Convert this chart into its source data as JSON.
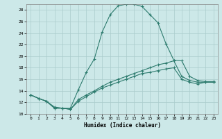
{
  "xlabel": "Humidex (Indice chaleur)",
  "bg_color": "#cce8e8",
  "line_color": "#2d7b6e",
  "grid_color": "#aacccc",
  "xlim": [
    -0.5,
    23.5
  ],
  "ylim": [
    10,
    29
  ],
  "xticks": [
    0,
    1,
    2,
    3,
    4,
    5,
    6,
    7,
    8,
    9,
    10,
    11,
    12,
    13,
    14,
    15,
    16,
    17,
    18,
    19,
    20,
    21,
    22,
    23
  ],
  "yticks": [
    10,
    12,
    14,
    16,
    18,
    20,
    22,
    24,
    26,
    28
  ],
  "line1_x": [
    0,
    1,
    2,
    3,
    4,
    5,
    6,
    7,
    8,
    9,
    10,
    11,
    12,
    13,
    14,
    15,
    16,
    17,
    18,
    19,
    20,
    21,
    22,
    23
  ],
  "line1_y": [
    13.3,
    12.7,
    12.2,
    11.0,
    11.0,
    11.0,
    14.2,
    17.2,
    19.5,
    24.2,
    27.2,
    28.7,
    29.0,
    29.0,
    28.6,
    27.2,
    25.8,
    22.2,
    19.3,
    19.2,
    16.5,
    15.8,
    15.6,
    15.6
  ],
  "line2_x": [
    0,
    1,
    2,
    3,
    4,
    5,
    6,
    7,
    8,
    9,
    10,
    11,
    12,
    13,
    14,
    15,
    16,
    17,
    18,
    19,
    20,
    21,
    22,
    23
  ],
  "line2_y": [
    13.3,
    12.7,
    12.2,
    11.2,
    11.0,
    10.8,
    12.5,
    13.3,
    14.0,
    14.8,
    15.5,
    16.0,
    16.5,
    17.0,
    17.5,
    18.0,
    18.5,
    18.8,
    19.2,
    16.5,
    15.8,
    15.5,
    15.5,
    15.5
  ],
  "line3_x": [
    0,
    1,
    2,
    3,
    4,
    5,
    6,
    7,
    8,
    9,
    10,
    11,
    12,
    13,
    14,
    15,
    16,
    17,
    18,
    19,
    20,
    21,
    22,
    23
  ],
  "line3_y": [
    13.3,
    12.7,
    12.2,
    11.0,
    11.0,
    10.8,
    12.2,
    13.0,
    13.8,
    14.5,
    15.0,
    15.5,
    16.0,
    16.5,
    17.0,
    17.2,
    17.5,
    17.8,
    18.0,
    16.0,
    15.5,
    15.2,
    15.5,
    15.5
  ]
}
